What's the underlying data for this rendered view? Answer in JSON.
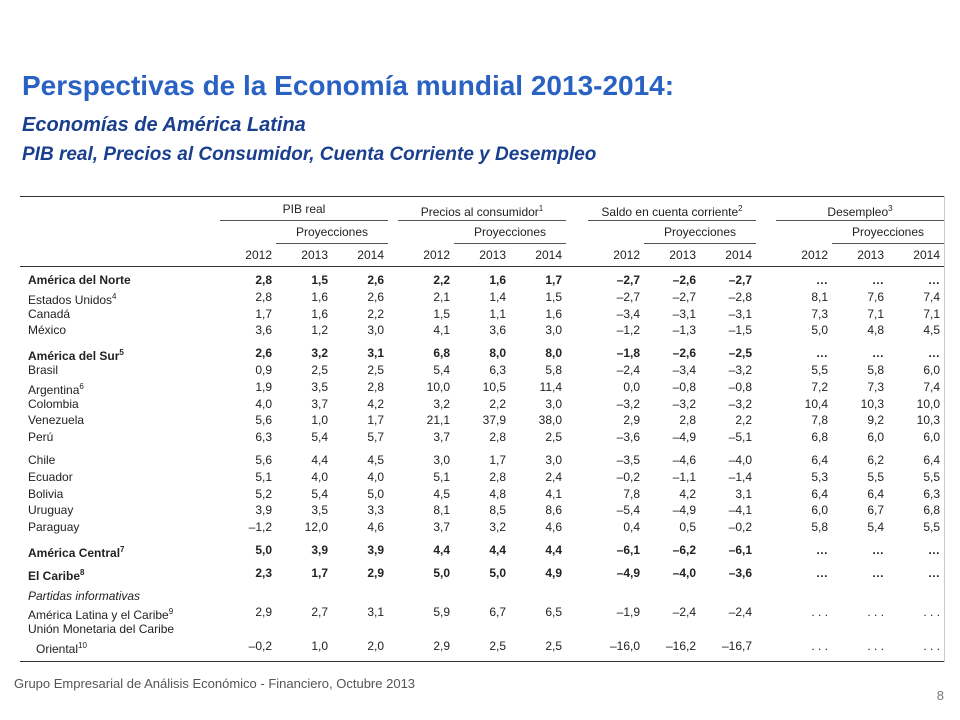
{
  "header": {
    "title": "Perspectivas de la Economía mundial 2013-2014:",
    "subtitle": "Economías de América Latina",
    "subtitle2": "PIB real, Precios al Consumidor, Cuenta Corriente y Desempleo"
  },
  "table": {
    "groups": [
      {
        "label": "PIB real"
      },
      {
        "label": "Precios al consumidor",
        "sup": "1"
      },
      {
        "label": "Saldo en cuenta corriente",
        "sup": "2"
      },
      {
        "label": "Desempleo",
        "sup": "3"
      }
    ],
    "projection": "Proyecciones",
    "years": [
      "2012",
      "2013",
      "2014"
    ],
    "sections": [
      [
        {
          "label": "América del Norte",
          "bold": true,
          "values": [
            "2,8",
            "1,5",
            "2,6",
            "2,2",
            "1,6",
            "1,7",
            "–2,7",
            "–2,6",
            "–2,7",
            "…",
            "…",
            "…"
          ]
        },
        {
          "label": "Estados Unidos",
          "sup": "4",
          "values": [
            "2,8",
            "1,6",
            "2,6",
            "2,1",
            "1,4",
            "1,5",
            "–2,7",
            "–2,7",
            "–2,8",
            "8,1",
            "7,6",
            "7,4"
          ]
        },
        {
          "label": "Canadá",
          "values": [
            "1,7",
            "1,6",
            "2,2",
            "1,5",
            "1,1",
            "1,6",
            "–3,4",
            "–3,1",
            "–3,1",
            "7,3",
            "7,1",
            "7,1"
          ]
        },
        {
          "label": "México",
          "values": [
            "3,6",
            "1,2",
            "3,0",
            "4,1",
            "3,6",
            "3,0",
            "–1,2",
            "–1,3",
            "–1,5",
            "5,0",
            "4,8",
            "4,5"
          ]
        }
      ],
      [
        {
          "label": "América del Sur",
          "sup": "5",
          "bold": true,
          "values": [
            "2,6",
            "3,2",
            "3,1",
            "6,8",
            "8,0",
            "8,0",
            "–1,8",
            "–2,6",
            "–2,5",
            "…",
            "…",
            "…"
          ]
        },
        {
          "label": "Brasil",
          "values": [
            "0,9",
            "2,5",
            "2,5",
            "5,4",
            "6,3",
            "5,8",
            "–2,4",
            "–3,4",
            "–3,2",
            "5,5",
            "5,8",
            "6,0"
          ]
        },
        {
          "label": "Argentina",
          "sup": "6",
          "values": [
            "1,9",
            "3,5",
            "2,8",
            "10,0",
            "10,5",
            "11,4",
            "0,0",
            "–0,8",
            "–0,8",
            "7,2",
            "7,3",
            "7,4"
          ]
        },
        {
          "label": "Colombia",
          "values": [
            "4,0",
            "3,7",
            "4,2",
            "3,2",
            "2,2",
            "3,0",
            "–3,2",
            "–3,2",
            "–3,2",
            "10,4",
            "10,3",
            "10,0"
          ]
        },
        {
          "label": "Venezuela",
          "values": [
            "5,6",
            "1,0",
            "1,7",
            "21,1",
            "37,9",
            "38,0",
            "2,9",
            "2,8",
            "2,2",
            "7,8",
            "9,2",
            "10,3"
          ]
        },
        {
          "label": "Perú",
          "values": [
            "6,3",
            "5,4",
            "5,7",
            "3,7",
            "2,8",
            "2,5",
            "–3,6",
            "–4,9",
            "–5,1",
            "6,8",
            "6,0",
            "6,0"
          ]
        }
      ],
      [
        {
          "label": "Chile",
          "values": [
            "5,6",
            "4,4",
            "4,5",
            "3,0",
            "1,7",
            "3,0",
            "–3,5",
            "–4,6",
            "–4,0",
            "6,4",
            "6,2",
            "6,4"
          ]
        },
        {
          "label": "Ecuador",
          "values": [
            "5,1",
            "4,0",
            "4,0",
            "5,1",
            "2,8",
            "2,4",
            "–0,2",
            "–1,1",
            "–1,4",
            "5,3",
            "5,5",
            "5,5"
          ]
        },
        {
          "label": "Bolivia",
          "values": [
            "5,2",
            "5,4",
            "5,0",
            "4,5",
            "4,8",
            "4,1",
            "7,8",
            "4,2",
            "3,1",
            "6,4",
            "6,4",
            "6,3"
          ]
        },
        {
          "label": "Uruguay",
          "values": [
            "3,9",
            "3,5",
            "3,3",
            "8,1",
            "8,5",
            "8,6",
            "–5,4",
            "–4,9",
            "–4,1",
            "6,0",
            "6,7",
            "6,8"
          ]
        },
        {
          "label": "Paraguay",
          "values": [
            "–1,2",
            "12,0",
            "4,6",
            "3,7",
            "3,2",
            "4,6",
            "0,4",
            "0,5",
            "–0,2",
            "5,8",
            "5,4",
            "5,5"
          ]
        }
      ],
      [
        {
          "label": "América Central",
          "sup": "7",
          "bold": true,
          "values": [
            "5,0",
            "3,9",
            "3,9",
            "4,4",
            "4,4",
            "4,4",
            "–6,1",
            "–6,2",
            "–6,1",
            "…",
            "…",
            "…"
          ]
        }
      ],
      [
        {
          "label": "El Caribe",
          "sup": "8",
          "bold": true,
          "values": [
            "2,3",
            "1,7",
            "2,9",
            "5,0",
            "5,0",
            "4,9",
            "–4,9",
            "–4,0",
            "–3,6",
            "…",
            "…",
            "…"
          ]
        }
      ],
      [
        {
          "label": "Partidas informativas",
          "italic": true
        },
        {
          "label": "América Latina y el Caribe",
          "sup": "9",
          "values": [
            "2,9",
            "2,7",
            "3,1",
            "5,9",
            "6,7",
            "6,5",
            "–1,9",
            "–2,4",
            "–2,4",
            ". . .",
            ". . .",
            ". . ."
          ]
        },
        {
          "label": "Unión Monetaria del Caribe",
          "label_cont": "Oriental",
          "sup": "10",
          "values": [
            "–0,2",
            "1,0",
            "2,0",
            "2,9",
            "2,5",
            "2,5",
            "–16,0",
            "–16,2",
            "–16,7",
            ". . .",
            ". . .",
            ". . ."
          ]
        }
      ]
    ]
  },
  "footer": {
    "source": "Grupo Empresarial de Análisis Económico - Financiero,  Octubre 2013",
    "page": "8"
  }
}
